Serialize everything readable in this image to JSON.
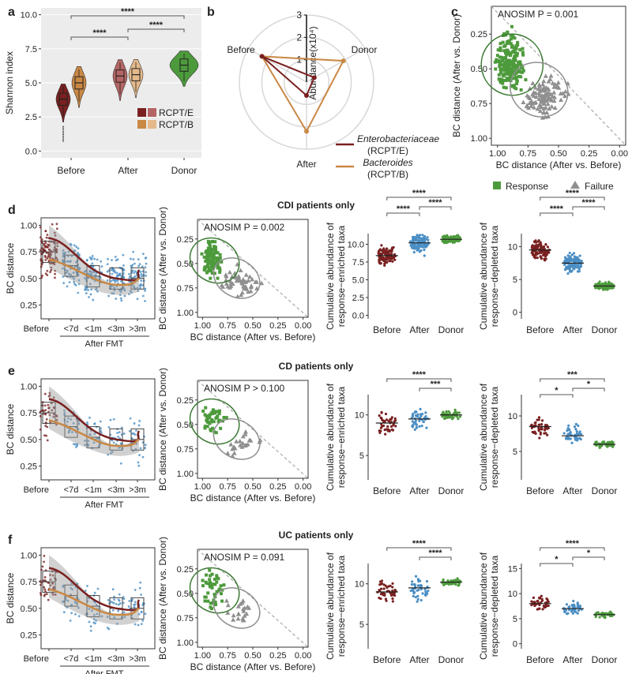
{
  "colors": {
    "red": "#7a2020",
    "red_light": "#b56565",
    "orange": "#c98844",
    "orange_light": "#e5b98a",
    "green": "#4d9a3c",
    "green_dark": "#3d7a35",
    "grey": "#8f8f8f",
    "blue": "#4a8ec4",
    "panel_bg": "#ececec"
  },
  "panel_labels": {
    "a": "a",
    "b": "b",
    "c": "c",
    "d": "d",
    "e": "e",
    "f": "f"
  },
  "section_titles": {
    "d": "CDI patients only",
    "e": "CD patients only",
    "f": "UC patients only"
  },
  "common": {
    "bc_distance": "BC distance",
    "after_fmt": "After FMT",
    "timepoints": [
      "Before",
      "<7d",
      "<1m",
      "<3m",
      ">3m"
    ],
    "groups3": [
      "Before",
      "After",
      "Donor"
    ],
    "pcoa_xlabel": "BC distance (After vs. Before)",
    "pcoa_ylabel": "BC distance (After vs. Donor)",
    "enriched_ylabel": [
      "Cumulative abundance of",
      "response−enriched taxa"
    ],
    "depleted_ylabel": [
      "Cumulative abundance of",
      "response−depleted taxa"
    ],
    "pcoa_ticks": [
      "1.00",
      "0.75",
      "0.50",
      "0.25",
      "0.00"
    ]
  },
  "chart_data": [
    {
      "panel": "a",
      "type": "violin",
      "ylabel": "Shannon index",
      "ylim": [
        -0.5,
        10.5
      ],
      "yticks": [
        "0.0",
        "2.5",
        "5.0",
        "7.5",
        "10.0"
      ],
      "categories": [
        "Before",
        "After",
        "Donor"
      ],
      "series": [
        {
          "name": "RCPT/E",
          "medians": [
            3.8,
            5.5,
            null
          ]
        },
        {
          "name": "RCPT/B",
          "medians": [
            5.0,
            5.6,
            6.3
          ]
        }
      ],
      "significance": [
        "****",
        "****",
        "****"
      ],
      "legend": [
        "RCPT/E",
        "RCPT/B"
      ]
    },
    {
      "panel": "b",
      "type": "radar",
      "axis_label": "Abundance(x10⁴)",
      "rticks": [
        "1",
        "2",
        "3"
      ],
      "spokes": [
        "Before",
        "Donor",
        "After"
      ],
      "series": [
        {
          "name": "Enterobacteriaceae",
          "sub": "(RCPT/E)",
          "values": [
            2.3,
            0.4,
            0.6
          ]
        },
        {
          "name": "Bacteroides",
          "sub": "(RCPT/B)",
          "values": [
            2.3,
            1.9,
            2.2
          ]
        }
      ]
    },
    {
      "panel": "c",
      "type": "scatter",
      "annotation": "ANOSIM P = 0.001",
      "legend": [
        "Response",
        "Failure"
      ]
    },
    {
      "panel": "d",
      "type": "composite",
      "pcoa_annotation": "ANOSIM P = 0.002",
      "bc_yticks": [
        "0.25",
        "0.50",
        "0.75",
        "1.00"
      ],
      "enriched_yticks": [
        "0.0",
        "2.5",
        "5.0",
        "7.5",
        "10.0"
      ],
      "depleted_yticks": [
        "0",
        "5",
        "10"
      ],
      "enriched_sig": [
        "****",
        "****",
        "****"
      ],
      "depleted_sig": [
        "****",
        "****",
        "****"
      ],
      "enriched_medians": [
        8.4,
        10.2,
        10.7
      ],
      "depleted_medians": [
        9.5,
        7.5,
        4.0
      ]
    },
    {
      "panel": "e",
      "type": "composite",
      "pcoa_annotation": "ANOSIM P > 0.100",
      "bc_yticks": [
        "0.25",
        "0.50",
        "0.75",
        "1.00"
      ],
      "enriched_yticks": [
        "5",
        "10"
      ],
      "depleted_yticks": [
        "5",
        "10"
      ],
      "enriched_sig": [
        "****",
        "***"
      ],
      "depleted_sig": [
        "***",
        "*",
        "*"
      ],
      "enriched_medians": [
        9.0,
        9.5,
        10.0
      ],
      "depleted_medians": [
        8.5,
        7.2,
        6.0
      ]
    },
    {
      "panel": "f",
      "type": "composite",
      "pcoa_annotation": "ANOSIM P = 0.091",
      "bc_yticks": [
        "0.25",
        "0.50",
        "0.75",
        "1.00"
      ],
      "enriched_yticks": [
        "5",
        "10"
      ],
      "depleted_yticks": [
        "0",
        "5",
        "10",
        "15"
      ],
      "enriched_sig": [
        "****",
        "****"
      ],
      "depleted_sig": [
        "****",
        "*",
        "*"
      ],
      "enriched_medians": [
        9.0,
        9.5,
        10.2
      ],
      "depleted_medians": [
        8.0,
        7.0,
        5.8
      ]
    }
  ]
}
